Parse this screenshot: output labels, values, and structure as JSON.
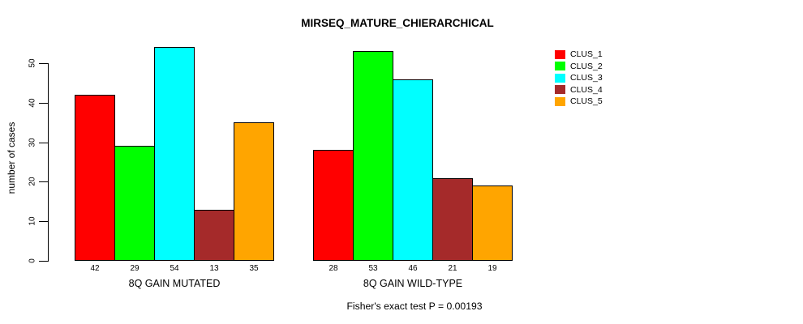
{
  "page": {
    "background": "#FFFFFF",
    "text_color": "#000000",
    "axis_color": "#000000"
  },
  "chart_data": {
    "type": "bar",
    "title": "MIRSEQ_MATURE_CHIERARCHICAL",
    "ylabel": "number of cases",
    "xlabel": "",
    "categories": [
      "8Q GAIN MUTATED",
      "8Q GAIN WILD-TYPE"
    ],
    "series": [
      {
        "name": "CLUS_1",
        "color": "#FF0000",
        "values": [
          42,
          28
        ]
      },
      {
        "name": "CLUS_2",
        "color": "#00FF00",
        "values": [
          29,
          53
        ]
      },
      {
        "name": "CLUS_3",
        "color": "#00FFFF",
        "values": [
          54,
          46
        ]
      },
      {
        "name": "CLUS_4",
        "color": "#A52A2A",
        "values": [
          13,
          21
        ]
      },
      {
        "name": "CLUS_5",
        "color": "#FFA500",
        "values": [
          35,
          19
        ]
      }
    ],
    "yticks": [
      0,
      10,
      20,
      30,
      40,
      50
    ],
    "ylim": [
      0,
      54
    ],
    "grid": false,
    "bar_border_color": "#000000",
    "bar_value_labels_shown": true,
    "legend_position": "right-outside",
    "legend_entries": [
      "CLUS_1",
      "CLUS_2",
      "CLUS_3",
      "CLUS_4",
      "CLUS_5"
    ],
    "annotation": "Fisher's exact test P = 0.00193"
  }
}
